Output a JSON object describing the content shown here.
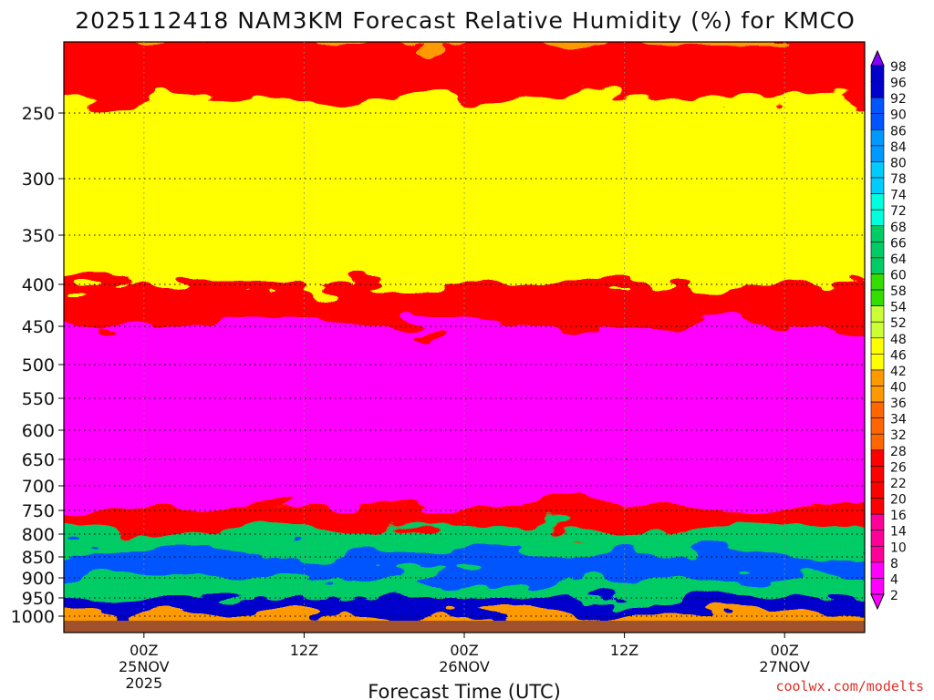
{
  "title": "2025112418 NAM3KM Forecast Relative Humidity (%) for KMCO",
  "watermark": "coolwx.com/modelts",
  "chart_data": {
    "type": "heatmap",
    "title": "2025112418 NAM3KM Forecast Relative Humidity (%) for KMCO",
    "xlabel": "Forecast Time (UTC)",
    "ylabel": "",
    "x_ticks": [
      {
        "hour": 6,
        "lines": [
          "00Z",
          "25NOV",
          "2025"
        ]
      },
      {
        "hour": 18,
        "lines": [
          "12Z"
        ]
      },
      {
        "hour": 30,
        "lines": [
          "00Z",
          "26NOV"
        ]
      },
      {
        "hour": 42,
        "lines": [
          "12Z"
        ]
      },
      {
        "hour": 54,
        "lines": [
          "00Z",
          "27NOV"
        ]
      }
    ],
    "xlim_hours": [
      0,
      60
    ],
    "y_ticks": [
      250,
      300,
      350,
      400,
      450,
      500,
      550,
      600,
      650,
      700,
      750,
      800,
      850,
      900,
      950,
      1000
    ],
    "ylim_hpa": [
      200,
      1000
    ],
    "grid": true,
    "legend": "right",
    "legend_levels": [
      2,
      4,
      8,
      10,
      14,
      16,
      20,
      22,
      26,
      28,
      32,
      34,
      36,
      40,
      42,
      46,
      48,
      52,
      54,
      58,
      60,
      64,
      66,
      68,
      72,
      74,
      78,
      80,
      84,
      86,
      90,
      92,
      96,
      98
    ],
    "layers": [
      {
        "top": 200,
        "bottom": 240,
        "rh": 22
      },
      {
        "top": 240,
        "bottom": 400,
        "rh": 45
      },
      {
        "top": 400,
        "bottom": 450,
        "rh": 22
      },
      {
        "top": 450,
        "bottom": 740,
        "rh": 6
      },
      {
        "top": 740,
        "bottom": 790,
        "rh": 20
      },
      {
        "top": 790,
        "bottom": 840,
        "rh": 62
      },
      {
        "top": 840,
        "bottom": 900,
        "rh": 88
      },
      {
        "top": 900,
        "bottom": 950,
        "rh": 64
      },
      {
        "top": 950,
        "bottom": 1000,
        "rh": 92
      }
    ]
  }
}
